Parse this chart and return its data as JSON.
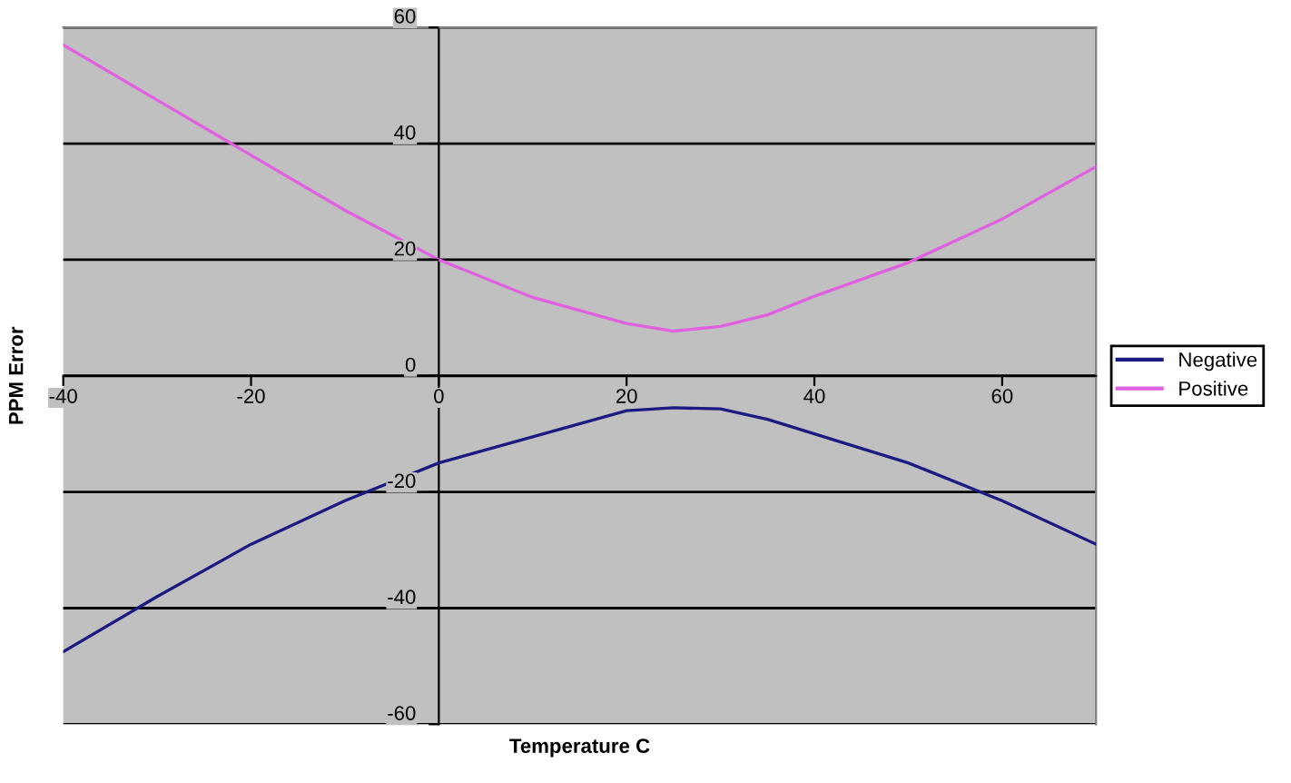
{
  "chart_data": {
    "type": "line",
    "xlabel": "Temperature C",
    "ylabel": "PPM Error",
    "x": [
      -40,
      -30,
      -20,
      -10,
      0,
      10,
      20,
      25,
      30,
      35,
      40,
      50,
      60,
      70
    ],
    "series": [
      {
        "name": "Negative",
        "color": "#1a1a80",
        "values": [
          -47.5,
          -38,
          -29,
          -21.5,
          -15,
          -10.5,
          -6,
          -5.5,
          -5.7,
          -7.5,
          -10,
          -15,
          -21.5,
          -29
        ]
      },
      {
        "name": "Positive",
        "color": "#e060e0",
        "values": [
          57,
          47.5,
          38,
          28.5,
          20,
          13.5,
          9,
          7.7,
          8.5,
          10.5,
          13.7,
          19.5,
          27,
          36
        ]
      }
    ],
    "xlim": [
      -40,
      70
    ],
    "ylim": [
      -60,
      60
    ],
    "xticks": [
      -40,
      -20,
      0,
      20,
      40,
      60
    ],
    "yticks": [
      -60,
      -40,
      -20,
      0,
      20,
      40,
      60
    ],
    "grid": "y",
    "legend": "right",
    "marker": "none",
    "line_style": "solid"
  }
}
